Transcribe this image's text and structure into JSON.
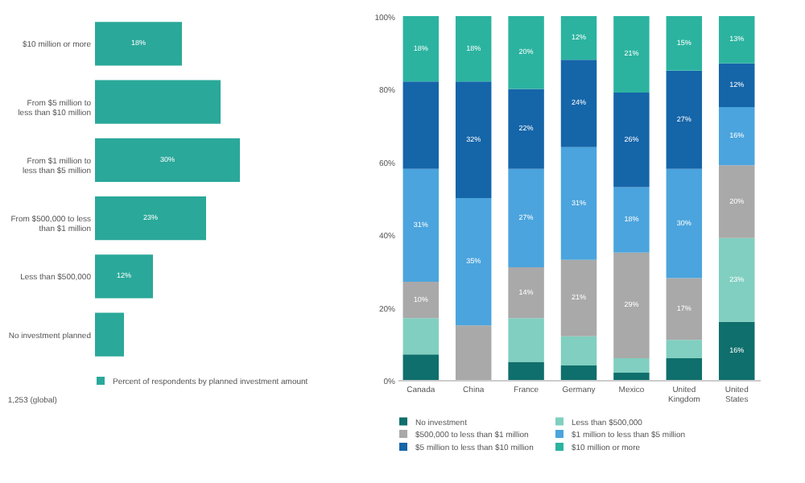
{
  "chart_data": [
    {
      "type": "bar",
      "orientation": "horizontal",
      "categories": [
        "$10 million or more",
        "From $5 million to less than $10 million",
        "From $1 million to less than $5 million",
        "From $500,000 to less than $1 million",
        "Less than $500,000",
        "No investment planned"
      ],
      "series": [
        {
          "name": "Percent of respondents by planned investment amount",
          "color": "#2aa89a",
          "values": [
            18,
            26,
            30,
            23,
            12,
            6
          ],
          "value_labels": [
            "18%",
            null,
            "30%",
            "23%",
            "12%",
            null
          ]
        }
      ],
      "legend": "bottom",
      "annotations": [
        "1,253 (global)"
      ]
    },
    {
      "type": "bar",
      "stacked": true,
      "categories": [
        "Canada",
        "China",
        "France",
        "Germany",
        "Mexico",
        "United Kingdom",
        "United States"
      ],
      "series": [
        {
          "name": "No investment",
          "color": "#0f6f6c",
          "values": [
            7,
            0,
            5,
            4,
            2,
            6,
            16
          ],
          "value_labels": [
            null,
            null,
            null,
            null,
            null,
            null,
            "16%"
          ]
        },
        {
          "name": "Less than $500,000",
          "color": "#80cfc0",
          "values": [
            10,
            0,
            12,
            8,
            4,
            5,
            23
          ],
          "value_labels": [
            null,
            null,
            null,
            null,
            null,
            null,
            "23%"
          ]
        },
        {
          "name": "$500,000 to less than $1 million",
          "color": "#a9a9a9",
          "values": [
            10,
            15,
            14,
            21,
            29,
            17,
            20
          ],
          "value_labels": [
            "10%",
            null,
            "14%",
            "21%",
            "29%",
            "17%",
            "20%"
          ]
        },
        {
          "name": "$1 million to less than $5 million",
          "color": "#4ba4dd",
          "values": [
            31,
            35,
            27,
            31,
            18,
            30,
            16
          ],
          "value_labels": [
            "31%",
            "35%",
            "27%",
            "31%",
            "18%",
            "30%",
            "16%"
          ]
        },
        {
          "name": "$5 million to less than $10 million",
          "color": "#1565a9",
          "values": [
            24,
            32,
            22,
            24,
            26,
            27,
            12
          ],
          "value_labels": [
            null,
            "32%",
            "22%",
            "24%",
            "26%",
            "27%",
            "12%"
          ]
        },
        {
          "name": "$10 million or more",
          "color": "#2bb3a0",
          "values": [
            18,
            18,
            20,
            12,
            21,
            15,
            13
          ],
          "value_labels": [
            "18%",
            "18%",
            "20%",
            "12%",
            "21%",
            "15%",
            "13%"
          ]
        }
      ],
      "ylim": [
        0,
        100
      ],
      "yticks": [
        {
          "value": 0,
          "label": "0%"
        },
        {
          "value": 20,
          "label": "20%"
        },
        {
          "value": 40,
          "label": "40%"
        },
        {
          "value": 60,
          "label": "60%"
        },
        {
          "value": 80,
          "label": "80%"
        },
        {
          "value": 100,
          "label": "100%"
        }
      ],
      "legend": "bottom"
    }
  ]
}
